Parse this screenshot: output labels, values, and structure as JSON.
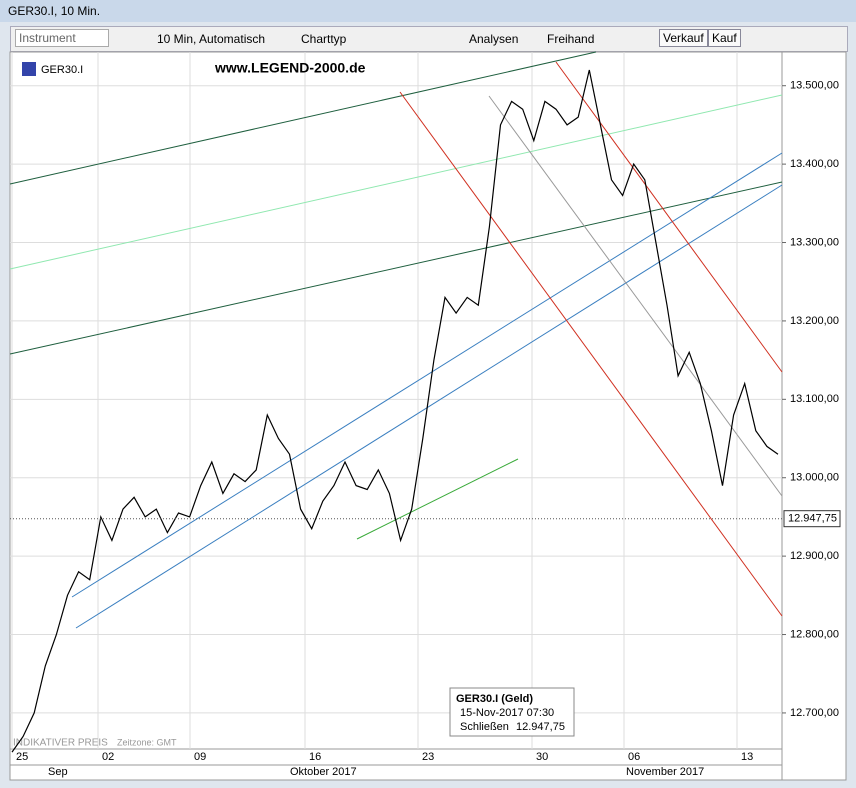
{
  "window": {
    "title": "GER30.I, 10 Min."
  },
  "toolbar": {
    "instrument": "Instrument",
    "interval": "10 Min,",
    "mode": "Automatisch",
    "chart_type": "Charttyp",
    "analysis": "Analysen",
    "freehand": "Freihand",
    "sell": "Verkauf",
    "buy": "Kauf"
  },
  "chart_data": {
    "type": "line",
    "symbol": "GER30.I",
    "watermark": "www.LEGEND-2000.de",
    "note": "INDIKATIVER PREIS",
    "timezone": "Zeitzone: GMT",
    "color": "#000000",
    "values": [
      12650,
      12670,
      12700,
      12760,
      12800,
      12850,
      12880,
      12870,
      12950,
      12920,
      12960,
      12975,
      12950,
      12960,
      12930,
      12955,
      12950,
      12990,
      13020,
      12980,
      13005,
      12995,
      13010,
      13080,
      13050,
      13030,
      12960,
      12935,
      12970,
      12990,
      13020,
      12990,
      12985,
      13010,
      12980,
      12920,
      12960,
      13050,
      13150,
      13230,
      13210,
      13230,
      13220,
      13320,
      13450,
      13480,
      13470,
      13430,
      13480,
      13470,
      13450,
      13460,
      13520,
      13450,
      13380,
      13360,
      13400,
      13380,
      13300,
      13220,
      13130,
      13160,
      13120,
      13060,
      12990,
      13080,
      13120,
      13060,
      13040,
      13030
    ],
    "ylim": [
      12654,
      13543
    ],
    "yticks": [
      {
        "value": 12700,
        "label": "12.700,00"
      },
      {
        "value": 12800,
        "label": "12.800,00"
      },
      {
        "value": 12900,
        "label": "12.900,00"
      },
      {
        "value": 13000,
        "label": "13.000,00"
      },
      {
        "value": 13100,
        "label": "13.100,00"
      },
      {
        "value": 13200,
        "label": "13.200,00"
      },
      {
        "value": 13300,
        "label": "13.300,00"
      },
      {
        "value": 13400,
        "label": "13.400,00"
      },
      {
        "value": 13500,
        "label": "13.500,00"
      }
    ],
    "day_labels": [
      "25",
      "02",
      "09",
      "16",
      "23",
      "30",
      "06",
      "13"
    ],
    "month_labels": [
      "Sep",
      "Oktober 2017",
      "November 2017"
    ],
    "current": {
      "value": 12947.75,
      "label": "12.947,75"
    },
    "tooltip": {
      "title": "GER30.I (Geld)",
      "time": "15-Nov-2017 07:30",
      "close_label": "Schließen",
      "close_value": "12.947,75"
    },
    "grid": true
  }
}
